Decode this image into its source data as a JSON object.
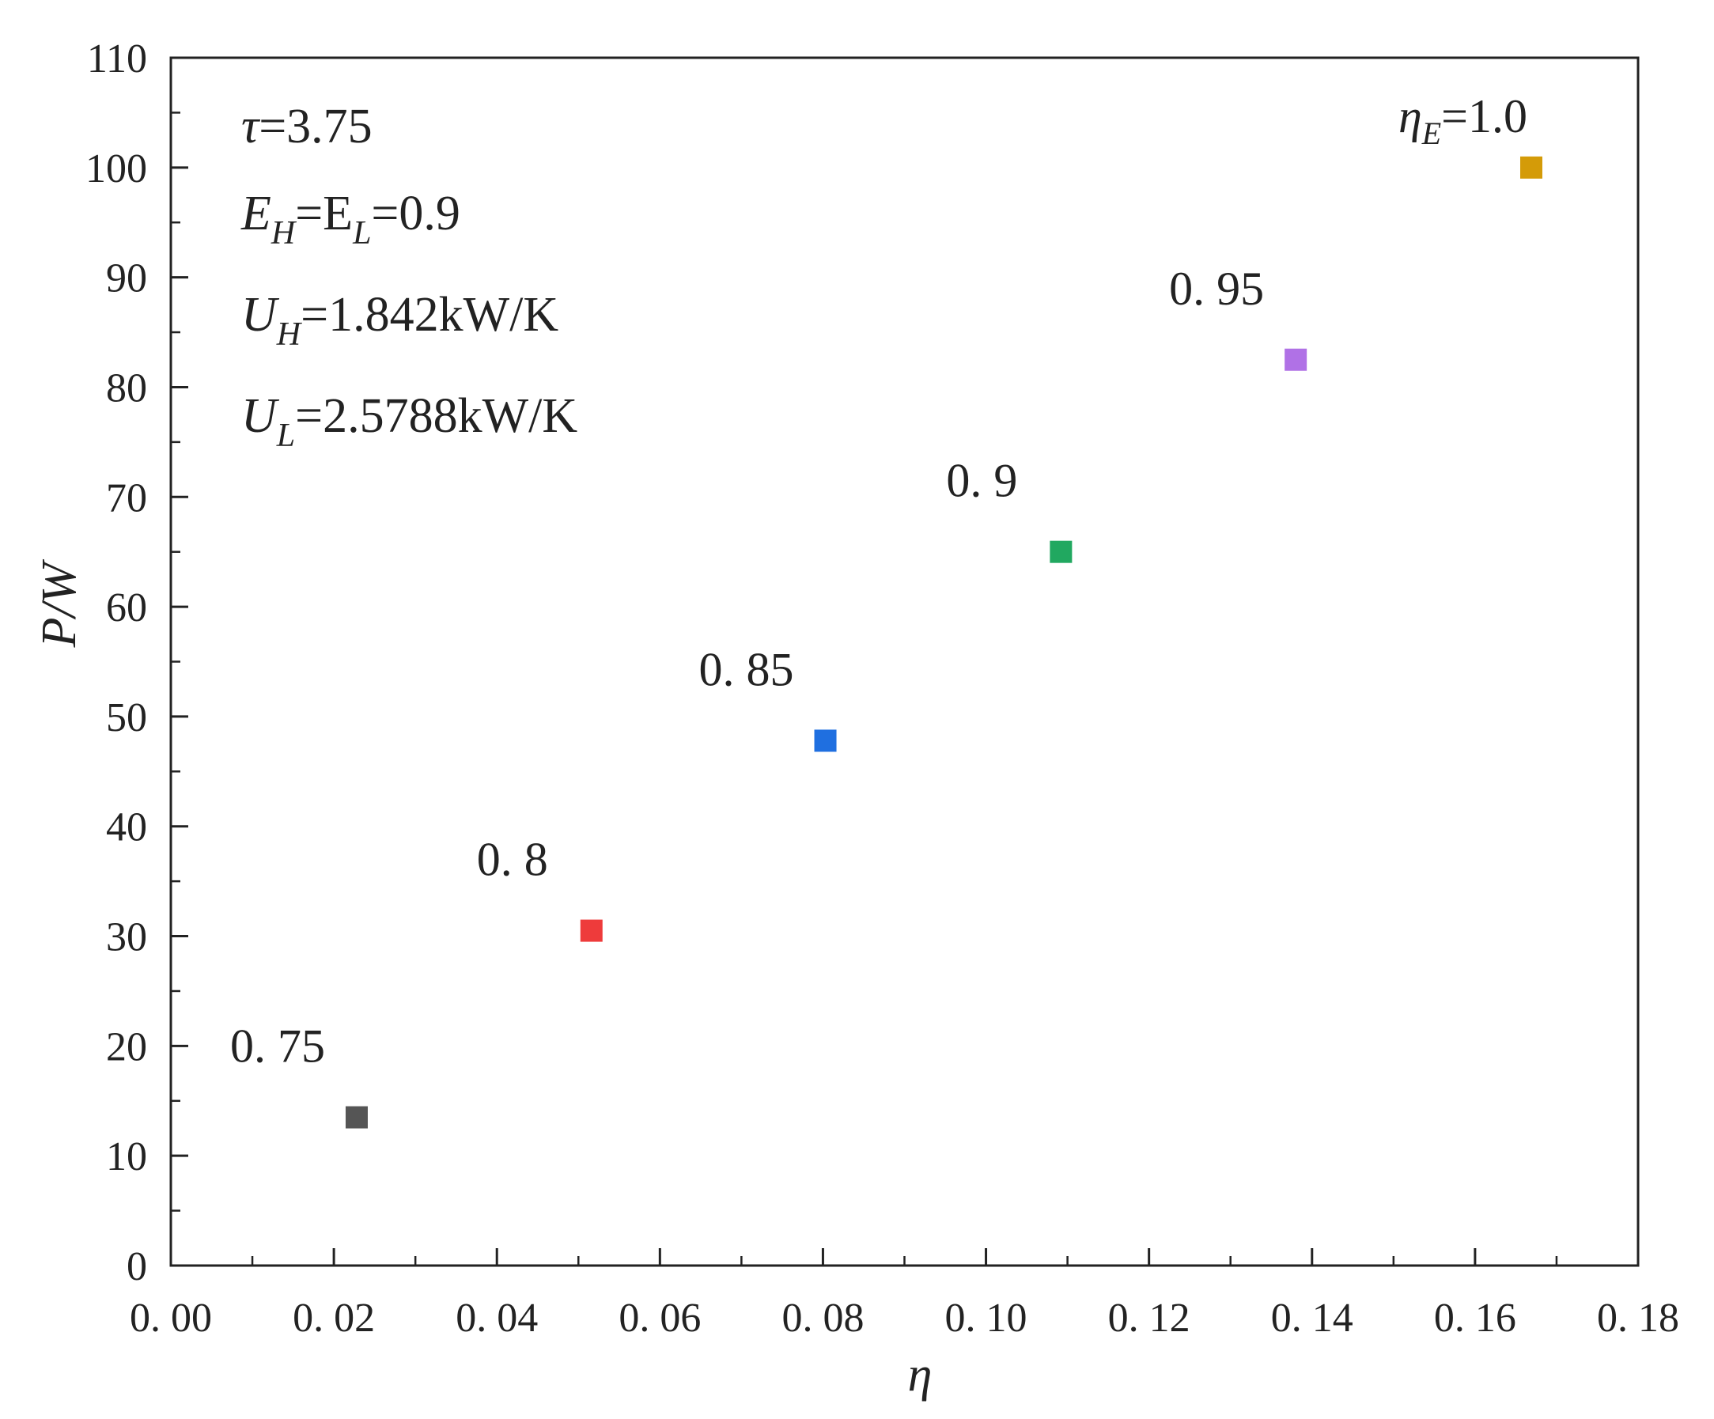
{
  "chart_data": {
    "type": "scatter",
    "title": "",
    "xlabel": "η",
    "ylabel": "P/W",
    "xlim": [
      0.0,
      0.18
    ],
    "ylim": [
      0,
      110
    ],
    "x_ticks": [
      0.0,
      0.02,
      0.04,
      0.06,
      0.08,
      0.1,
      0.12,
      0.14,
      0.16,
      0.18
    ],
    "x_tick_labels": [
      "0. 00",
      "0. 02",
      "0. 04",
      "0. 06",
      "0. 08",
      "0. 10",
      "0. 12",
      "0. 14",
      "0. 16",
      "0. 18"
    ],
    "y_ticks": [
      0,
      10,
      20,
      30,
      40,
      50,
      60,
      70,
      80,
      90,
      100,
      110
    ],
    "y_tick_labels": [
      "0",
      "10",
      "20",
      "30",
      "40",
      "50",
      "60",
      "70",
      "80",
      "90",
      "100",
      "110"
    ],
    "grid": false,
    "points": [
      {
        "x": 0.0228,
        "y": 13.5,
        "label": "0. 75",
        "color": "#555555"
      },
      {
        "x": 0.0516,
        "y": 30.5,
        "label": "0. 8",
        "color": "#ee3b3b"
      },
      {
        "x": 0.0803,
        "y": 47.8,
        "label": "0. 85",
        "color": "#1f6fe0"
      },
      {
        "x": 0.1092,
        "y": 65.0,
        "label": "0. 9",
        "color": "#21a860"
      },
      {
        "x": 0.138,
        "y": 82.5,
        "label": "0. 95",
        "color": "#b071e6"
      },
      {
        "x": 0.1669,
        "y": 100.0,
        "label": "=1.0",
        "label_prefix": "η",
        "label_sub": "E",
        "color": "#d49b08"
      }
    ],
    "annotations": [
      {
        "main": "τ",
        "rest": "=3.75"
      },
      {
        "main": "E",
        "sub": "H",
        "mid": "=E",
        "sub2": "L",
        "rest": "=0.9"
      },
      {
        "main": "U",
        "sub": "H",
        "rest": "=1.842kW/K"
      },
      {
        "main": "U",
        "sub": "L",
        "rest": "=2.5788kW/K"
      }
    ]
  }
}
